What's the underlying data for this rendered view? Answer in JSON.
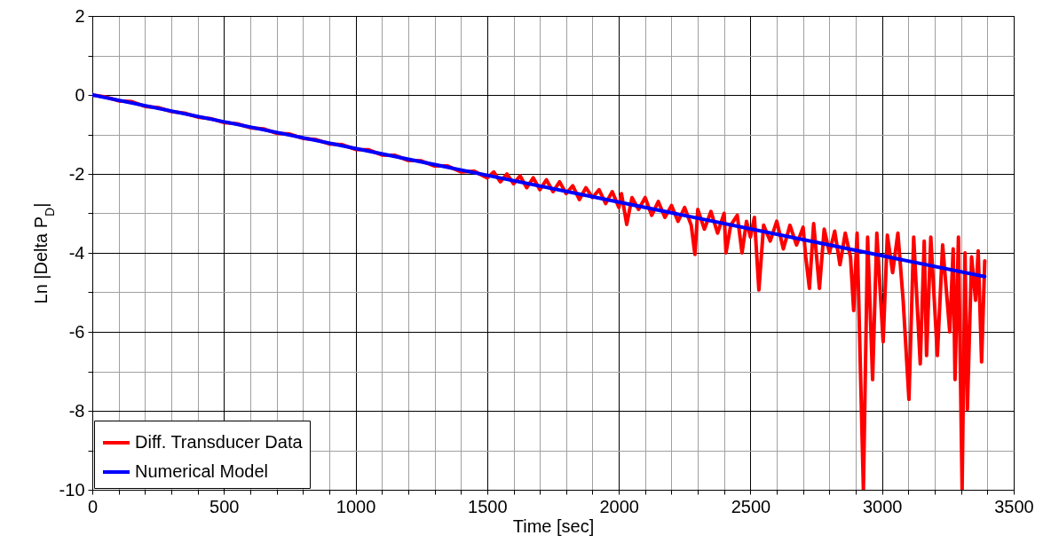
{
  "chart_data": {
    "type": "line",
    "xlabel": "Time [sec]",
    "ylabel": "Ln |Delta P$_{D}$|",
    "xlim": [
      0,
      3500
    ],
    "ylim": [
      -10,
      2
    ],
    "xticks": [
      0,
      {
        "value": 100,
        "label": null
      },
      {
        "value": 200,
        "label": null
      },
      {
        "value": 300,
        "label": null
      },
      {
        "value": 400,
        "label": null
      },
      500,
      {
        "value": 600,
        "label": null
      },
      {
        "value": 700,
        "label": null
      },
      {
        "value": 800,
        "label": null
      },
      {
        "value": 900,
        "label": null
      },
      1000,
      {
        "value": 1100,
        "label": null
      },
      {
        "value": 1200,
        "label": null
      },
      {
        "value": 1300,
        "label": null
      },
      {
        "value": 1400,
        "label": null
      },
      1500,
      {
        "value": 1600,
        "label": null
      },
      {
        "value": 1700,
        "label": null
      },
      {
        "value": 1800,
        "label": null
      },
      {
        "value": 1900,
        "label": null
      },
      2000,
      {
        "value": 2100,
        "label": null
      },
      {
        "value": 2200,
        "label": null
      },
      {
        "value": 2300,
        "label": null
      },
      {
        "value": 2400,
        "label": null
      },
      2500,
      {
        "value": 2600,
        "label": null
      },
      {
        "value": 2700,
        "label": null
      },
      {
        "value": 2800,
        "label": null
      },
      {
        "value": 2900,
        "label": null
      },
      3000,
      {
        "value": 3100,
        "label": null
      },
      {
        "value": 3200,
        "label": null
      },
      {
        "value": 3300,
        "label": null
      },
      {
        "value": 3400,
        "label": null
      },
      3500
    ],
    "yticks": [
      -10,
      {
        "value": -9,
        "label": null
      },
      -8,
      {
        "value": -7,
        "label": null
      },
      -6,
      {
        "value": -5,
        "label": null
      },
      -4,
      {
        "value": -3,
        "label": null
      },
      -2,
      {
        "value": -1,
        "label": null
      },
      0,
      {
        "value": 1,
        "label": null
      },
      2
    ],
    "grid": true,
    "legend": "bottom left",
    "line_style": "solid",
    "series": [
      {
        "name": "Diff. Transducer Data",
        "color": "#ff0000",
        "x": [
          0,
          50,
          100,
          150,
          200,
          250,
          300,
          350,
          400,
          450,
          500,
          550,
          600,
          650,
          700,
          750,
          800,
          850,
          900,
          950,
          1000,
          1050,
          1100,
          1150,
          1200,
          1250,
          1300,
          1350,
          1400,
          1450,
          1500,
          1525,
          1550,
          1575,
          1600,
          1625,
          1650,
          1675,
          1700,
          1725,
          1750,
          1775,
          1800,
          1825,
          1850,
          1875,
          1900,
          1925,
          1950,
          1975,
          2000,
          2010,
          2030,
          2050,
          2075,
          2100,
          2125,
          2150,
          2175,
          2200,
          2225,
          2250,
          2275,
          2289,
          2300,
          2325,
          2350,
          2375,
          2400,
          2407,
          2425,
          2450,
          2468,
          2485,
          2500,
          2515,
          2532,
          2550,
          2575,
          2600,
          2625,
          2650,
          2675,
          2700,
          2710,
          2724,
          2740,
          2762,
          2780,
          2800,
          2820,
          2840,
          2860,
          2880,
          2892,
          2905,
          2929,
          2945,
          2964,
          2980,
          3004,
          3020,
          3040,
          3060,
          3080,
          3102,
          3120,
          3145,
          3160,
          3169,
          3185,
          3210,
          3230,
          3257,
          3270,
          3277,
          3290,
          3304,
          3315,
          3324,
          3340,
          3355,
          3365,
          3378,
          3390
        ],
        "values": [
          0,
          -0.05,
          -0.15,
          -0.17,
          -0.29,
          -0.32,
          -0.42,
          -0.46,
          -0.56,
          -0.6,
          -0.7,
          -0.73,
          -0.83,
          -0.86,
          -0.97,
          -0.99,
          -1.1,
          -1.13,
          -1.24,
          -1.26,
          -1.38,
          -1.39,
          -1.52,
          -1.53,
          -1.66,
          -1.67,
          -1.8,
          -1.8,
          -1.95,
          -1.93,
          -2.1,
          -1.95,
          -2.2,
          -2.0,
          -2.25,
          -2.05,
          -2.35,
          -2.1,
          -2.4,
          -2.15,
          -2.45,
          -2.2,
          -2.5,
          -2.3,
          -2.65,
          -2.35,
          -2.6,
          -2.4,
          -2.75,
          -2.45,
          -2.85,
          -2.5,
          -3.28,
          -2.6,
          -2.9,
          -2.6,
          -3.05,
          -2.7,
          -3.1,
          -2.8,
          -3.2,
          -2.85,
          -3.3,
          -4.04,
          -2.9,
          -3.4,
          -2.95,
          -3.5,
          -3.0,
          -4.0,
          -3.3,
          -3.05,
          -4.0,
          -3.2,
          -3.6,
          -3.1,
          -4.94,
          -3.3,
          -3.7,
          -3.2,
          -3.9,
          -3.3,
          -3.8,
          -3.35,
          -4.1,
          -4.9,
          -3.26,
          -4.9,
          -3.4,
          -4.0,
          -3.45,
          -4.3,
          -3.5,
          -4.1,
          -5.46,
          -3.5,
          -10,
          -3.6,
          -7.21,
          -3.5,
          -6.25,
          -3.55,
          -4.5,
          -3.5,
          -5.2,
          -7.71,
          -3.6,
          -6.81,
          -3.7,
          -6.6,
          -3.6,
          -6.6,
          -3.8,
          -6.0,
          -3.9,
          -7.21,
          -3.6,
          -10,
          -4.0,
          -7.96,
          -4.1,
          -5.2,
          -3.95,
          -6.76,
          -4.2
        ]
      },
      {
        "name": "Numerical Model",
        "color": "#0000ff",
        "x": [
          0,
          3390
        ],
        "values": [
          0,
          -4.6
        ]
      }
    ]
  }
}
